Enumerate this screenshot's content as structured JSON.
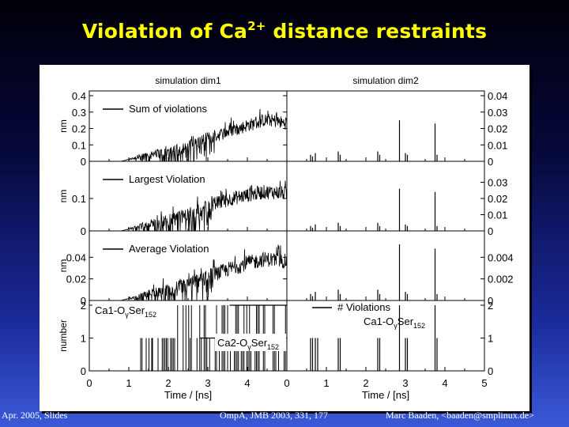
{
  "slide": {
    "title_prefix": "Violation of Ca",
    "title_sup": "2+",
    "title_suffix": " distance restraints"
  },
  "footer": {
    "left": "Apr. 2005, Slides",
    "center": "OmpA, JMB 2003, 331, 177",
    "right": "Marc Baaden, <baaden@smplinux.de>"
  },
  "chart_data": {
    "type": "line",
    "xlabel": "Time / [ns]",
    "columns": [
      {
        "title": "simulation dim1",
        "xlim": [
          0,
          5
        ],
        "xticks": [
          "0",
          "1",
          "2",
          "3",
          "4"
        ]
      },
      {
        "title": "simulation dim2",
        "xlim": [
          0,
          5
        ],
        "xticks": [
          "0",
          "1",
          "2",
          "3",
          "4",
          "5"
        ]
      }
    ],
    "panels": [
      {
        "name": "sum",
        "ylabel": "nm",
        "legend": "Sum of violations",
        "left_ylim": [
          0,
          0.4
        ],
        "left_ticks": [
          "0",
          "0.1",
          "0.2",
          "0.3",
          "0.4"
        ],
        "right_ylim": [
          0,
          0.04
        ],
        "right_ticks": [
          "0",
          "0.01",
          "0.02",
          "0.03",
          "0.04"
        ],
        "dim1_series": [
          [
            0.0,
            0.0
          ],
          [
            0.5,
            0.0
          ],
          [
            0.8,
            0.0
          ],
          [
            1.0,
            0.012
          ],
          [
            1.2,
            0.02
          ],
          [
            1.4,
            0.04
          ],
          [
            1.6,
            0.05
          ],
          [
            1.8,
            0.05
          ],
          [
            2.0,
            0.06
          ],
          [
            2.2,
            0.07
          ],
          [
            2.4,
            0.08
          ],
          [
            2.6,
            0.1
          ],
          [
            2.8,
            0.12
          ],
          [
            3.0,
            0.14
          ],
          [
            3.2,
            0.16
          ],
          [
            3.4,
            0.17
          ],
          [
            3.6,
            0.19
          ],
          [
            3.8,
            0.2
          ],
          [
            4.0,
            0.22
          ],
          [
            4.2,
            0.23
          ],
          [
            4.4,
            0.25
          ],
          [
            4.6,
            0.25
          ],
          [
            4.8,
            0.24
          ],
          [
            5.0,
            0.23
          ]
        ],
        "dim1_envelope": 0.04,
        "dim2_spikes": [
          [
            0.6,
            0.004
          ],
          [
            0.65,
            0.003
          ],
          [
            0.72,
            0.005
          ],
          [
            1.3,
            0.006
          ],
          [
            1.35,
            0.004
          ],
          [
            2.3,
            0.006
          ],
          [
            2.35,
            0.004
          ],
          [
            2.85,
            0.025
          ],
          [
            3.0,
            0.005
          ],
          [
            3.05,
            0.004
          ],
          [
            3.75,
            0.023
          ],
          [
            3.8,
            0.004
          ]
        ]
      },
      {
        "name": "largest",
        "ylabel": "nm",
        "legend": "Largest Violation",
        "left_ylim": [
          0,
          0.2
        ],
        "left_ticks": [
          "0",
          "0.1"
        ],
        "right_ylim": [
          0,
          0.04
        ],
        "right_ticks": [
          "0",
          "0.01",
          "0.02",
          "0.03"
        ],
        "dim1_series": [
          [
            0.0,
            0.0
          ],
          [
            0.5,
            0.0
          ],
          [
            0.8,
            0.0
          ],
          [
            1.0,
            0.006
          ],
          [
            1.2,
            0.012
          ],
          [
            1.4,
            0.02
          ],
          [
            1.6,
            0.025
          ],
          [
            1.8,
            0.028
          ],
          [
            2.0,
            0.032
          ],
          [
            2.2,
            0.04
          ],
          [
            2.4,
            0.045
          ],
          [
            2.6,
            0.055
          ],
          [
            2.8,
            0.065
          ],
          [
            3.0,
            0.075
          ],
          [
            3.2,
            0.085
          ],
          [
            3.4,
            0.09
          ],
          [
            3.6,
            0.1
          ],
          [
            3.8,
            0.105
          ],
          [
            4.0,
            0.11
          ],
          [
            4.2,
            0.115
          ],
          [
            4.4,
            0.12
          ],
          [
            4.6,
            0.12
          ],
          [
            4.8,
            0.118
          ],
          [
            5.0,
            0.115
          ]
        ],
        "dim1_envelope": 0.022,
        "dim2_spikes": [
          [
            0.6,
            0.003
          ],
          [
            0.65,
            0.002
          ],
          [
            0.72,
            0.004
          ],
          [
            1.3,
            0.005
          ],
          [
            1.35,
            0.003
          ],
          [
            2.3,
            0.005
          ],
          [
            2.35,
            0.003
          ],
          [
            2.85,
            0.026
          ],
          [
            3.0,
            0.004
          ],
          [
            3.05,
            0.003
          ],
          [
            3.75,
            0.024
          ],
          [
            3.8,
            0.003
          ]
        ]
      },
      {
        "name": "average",
        "ylabel": "nm",
        "legend": "Average Violation",
        "left_ylim": [
          0,
          0.06
        ],
        "left_ticks": [
          "0",
          "0.02",
          "0.04"
        ],
        "right_ylim": [
          0,
          0.006
        ],
        "right_ticks": [
          "0",
          "0.002",
          "0.004"
        ],
        "dim1_series": [
          [
            0.0,
            0.0
          ],
          [
            0.5,
            0.0
          ],
          [
            0.8,
            0.0
          ],
          [
            1.0,
            0.002
          ],
          [
            1.2,
            0.003
          ],
          [
            1.4,
            0.006
          ],
          [
            1.6,
            0.007
          ],
          [
            1.8,
            0.008
          ],
          [
            2.0,
            0.009
          ],
          [
            2.2,
            0.011
          ],
          [
            2.4,
            0.013
          ],
          [
            2.6,
            0.016
          ],
          [
            2.8,
            0.019
          ],
          [
            3.0,
            0.022
          ],
          [
            3.2,
            0.025
          ],
          [
            3.4,
            0.027
          ],
          [
            3.6,
            0.03
          ],
          [
            3.8,
            0.032
          ],
          [
            4.0,
            0.035
          ],
          [
            4.2,
            0.036
          ],
          [
            4.4,
            0.038
          ],
          [
            4.6,
            0.038
          ],
          [
            4.8,
            0.037
          ],
          [
            5.0,
            0.036
          ]
        ],
        "dim1_envelope": 0.007,
        "dim2_spikes": [
          [
            0.6,
            0.0006
          ],
          [
            0.65,
            0.0004
          ],
          [
            0.72,
            0.0008
          ],
          [
            1.3,
            0.001
          ],
          [
            1.35,
            0.0006
          ],
          [
            2.3,
            0.001
          ],
          [
            2.35,
            0.0006
          ],
          [
            2.85,
            0.0052
          ],
          [
            3.0,
            0.0008
          ],
          [
            3.05,
            0.0006
          ],
          [
            3.75,
            0.0048
          ],
          [
            3.8,
            0.0006
          ]
        ]
      },
      {
        "name": "number",
        "ylabel": "number",
        "legend": "# Violations",
        "left_ylim": [
          0,
          2
        ],
        "left_ticks": [
          "0",
          "1",
          "2"
        ],
        "right_ylim": [
          0,
          2
        ],
        "right_ticks": [
          "0",
          "1",
          "2"
        ],
        "annotations": {
          "ca1_main": "Ca1-O",
          "ca2_main": "Ca2-O",
          "sub_gamma": "γ",
          "ser": "Ser",
          "sub_152": "152"
        },
        "dim1_segments": [
          [
            0.0,
            1.3,
            0
          ],
          [
            1.3,
            1.6,
            1
          ],
          [
            1.6,
            2.2,
            1
          ],
          [
            2.2,
            2.8,
            2
          ],
          [
            2.8,
            3.6,
            2
          ],
          [
            3.6,
            5.0,
            2
          ]
        ],
        "dim2_spikes": [
          [
            0.6,
            1
          ],
          [
            0.65,
            1
          ],
          [
            0.72,
            1
          ],
          [
            0.78,
            1
          ],
          [
            1.3,
            1
          ],
          [
            1.35,
            1
          ],
          [
            2.3,
            1
          ],
          [
            2.35,
            1
          ],
          [
            2.85,
            2
          ],
          [
            3.0,
            1
          ],
          [
            3.05,
            1
          ],
          [
            3.75,
            2
          ],
          [
            3.8,
            1
          ]
        ]
      }
    ]
  }
}
